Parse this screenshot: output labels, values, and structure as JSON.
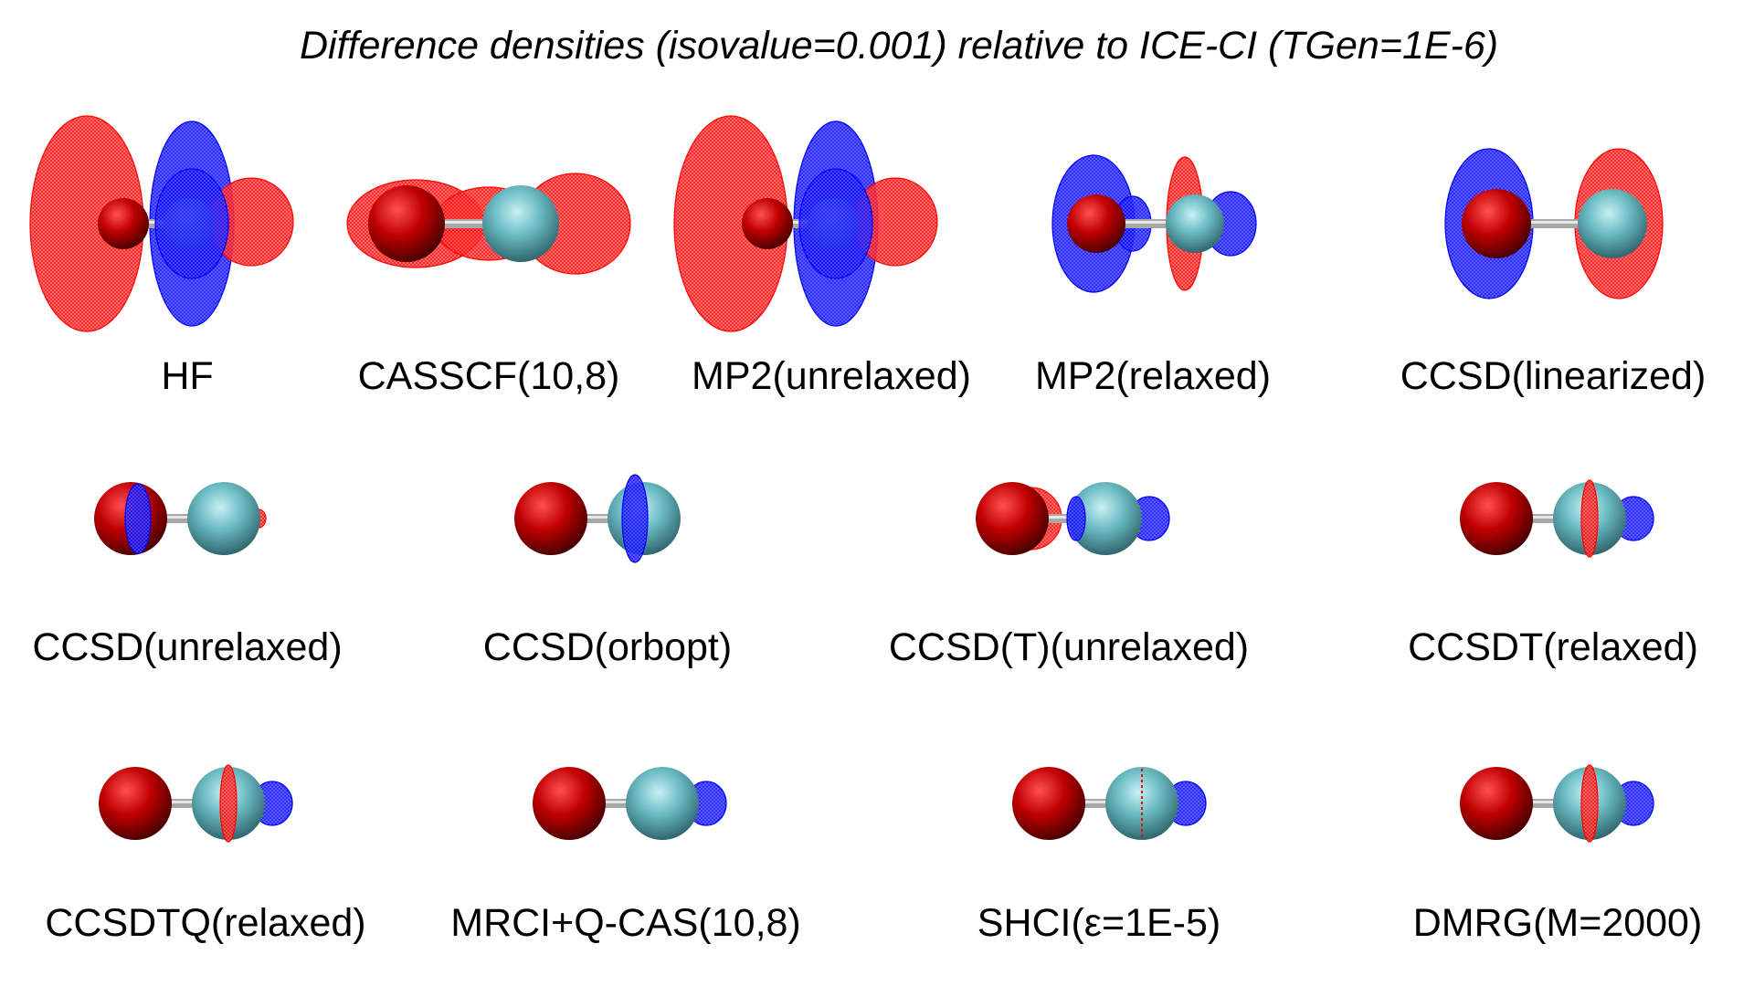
{
  "title": "Difference densities (isovalue=0.001) relative to ICE-CI (TGen=1E-6)",
  "colors": {
    "positive_lobe": "#ff0000",
    "negative_lobe": "#0000ff",
    "oxygen_atom": "#cc0000",
    "second_atom": "#5fb4bc",
    "bond": "#9a9a9a",
    "background": "#ffffff"
  },
  "panels": [
    {
      "label": "HF",
      "style": "big-oppose"
    },
    {
      "label": "CASSCF(10,8)",
      "style": "red-wrap"
    },
    {
      "label": "MP2(unrelaxed)",
      "style": "big-oppose"
    },
    {
      "label": "MP2(relaxed)",
      "style": "mp2-relaxed"
    },
    {
      "label": "CCSD(linearized)",
      "style": "split"
    },
    {
      "label": "CCSD(unrelaxed)",
      "style": "small-blue-o"
    },
    {
      "label": "CCSD(orbopt)",
      "style": "small-blue-c"
    },
    {
      "label": "CCSD(T)(unrelaxed)",
      "style": "small-red-blue"
    },
    {
      "label": "CCSDT(relaxed)",
      "style": "small-band"
    },
    {
      "label": "CCSDTQ(relaxed)",
      "style": "small-band"
    },
    {
      "label": "MRCI+Q-CAS(10,8)",
      "style": "small-blue-end"
    },
    {
      "label": "SHCI(ε=1E-5)",
      "style": "small-thin"
    },
    {
      "label": "DMRG(M=2000)",
      "style": "small-band"
    }
  ]
}
